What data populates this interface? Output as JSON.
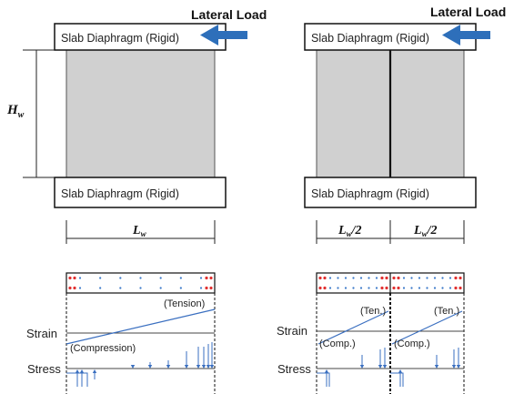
{
  "left": {
    "lateral_load": "Lateral Load",
    "top_slab": "Slab Diaphragm (Rigid)",
    "bottom_slab": "Slab Diaphragm (Rigid)",
    "height_label": "H",
    "height_sub": "w",
    "length_label": "L",
    "length_sub": "w",
    "tension": "(Tension)",
    "compression": "(Compression)",
    "strain": "Strain",
    "stress": "Stress"
  },
  "right": {
    "lateral_load": "Lateral Load",
    "top_slab": "Slab Diaphragm (Rigid)",
    "bottom_slab": "Slab Diaphragm (Rigid)",
    "half_length_1": "L",
    "half_length_1_sub": "w",
    "half_length_1_suffix": "/2",
    "half_length_2": "L",
    "half_length_2_sub": "w",
    "half_length_2_suffix": "/2",
    "tension_1": "(Ten.)",
    "tension_2": "(Ten.)",
    "compression_1": "(Comp.)",
    "compression_2": "(Comp.)",
    "strain": "Strain",
    "stress": "Stress"
  },
  "colors": {
    "wall_fill": "#d0d0d0",
    "arrow_blue": "#2e6fba",
    "rebar_red": "#e03030",
    "rebar_blue": "#3a78c8",
    "stress_blue": "#3a6fc0"
  }
}
